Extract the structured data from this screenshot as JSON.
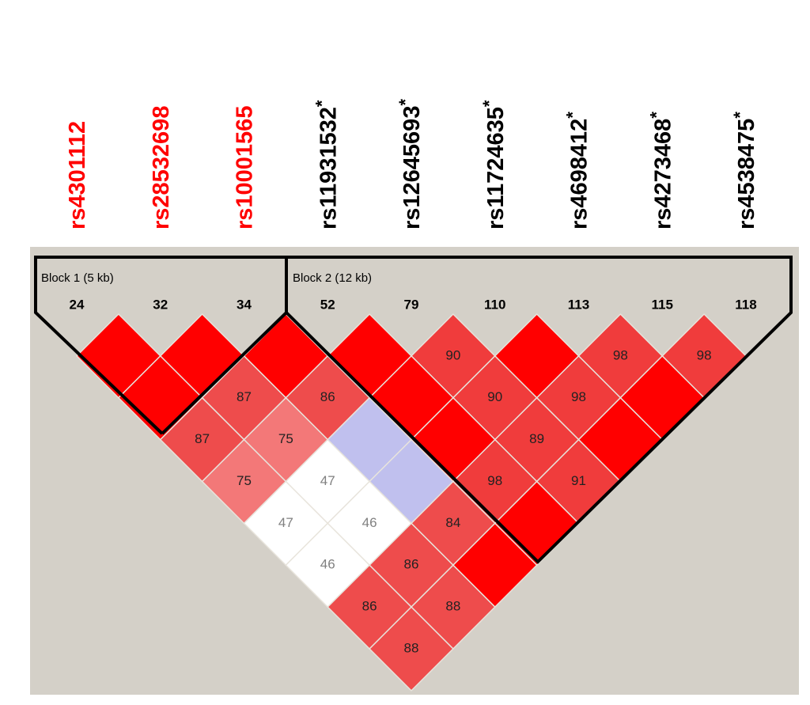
{
  "snps": [
    {
      "name": "rs4301112",
      "color": "#ff0000"
    },
    {
      "name": "rs28532698",
      "color": "#ff0000"
    },
    {
      "name": "rs10001565",
      "color": "#ff0000"
    },
    {
      "name": "rs11931532",
      "mark": "*",
      "color": "#000000"
    },
    {
      "name": "rs12645693",
      "mark": "*",
      "color": "#000000"
    },
    {
      "name": "rs11724635",
      "mark": "*",
      "color": "#000000"
    },
    {
      "name": "rs4698412",
      "mark": "*",
      "color": "#000000"
    },
    {
      "name": "rs4273468",
      "mark": "*",
      "color": "#000000"
    },
    {
      "name": "rs4538475",
      "mark": "*",
      "color": "#000000"
    }
  ],
  "positions": [
    24,
    32,
    34,
    52,
    79,
    110,
    113,
    115,
    118
  ],
  "blocks": [
    {
      "label": "Block 1 (5 kb)"
    },
    {
      "label": "Block 2 (12 kb)"
    }
  ],
  "ld_rows": [
    [
      {
        "value": null,
        "color": "#ff0000"
      },
      {
        "value": null,
        "color": "#ff0000"
      },
      {
        "value": null,
        "color": "#ff0000"
      },
      {
        "value": null,
        "color": "#ff0000"
      },
      {
        "value": 90,
        "color": "#f03c3c"
      },
      {
        "value": null,
        "color": "#ff0000"
      },
      {
        "value": 98,
        "color": "#f03c3c"
      },
      {
        "value": 98,
        "color": "#f03c3c"
      }
    ],
    [
      {
        "value": null,
        "color": "#ff0000"
      },
      {
        "value": 87,
        "color": "#ee4c4c"
      },
      {
        "value": 86,
        "color": "#ee4c4c"
      },
      {
        "value": null,
        "color": "#ff0000"
      },
      {
        "value": 90,
        "color": "#f03c3c"
      },
      {
        "value": 98,
        "color": "#f03c3c"
      },
      {
        "value": null,
        "color": "#ff0000"
      }
    ],
    [
      {
        "value": 87,
        "color": "#ee4c4c"
      },
      {
        "value": 75,
        "color": "#f37878"
      },
      {
        "value": null,
        "color": "#c0c0ee"
      },
      {
        "value": null,
        "color": "#ff0000"
      },
      {
        "value": 89,
        "color": "#f03c3c"
      },
      {
        "value": null,
        "color": "#ff0000"
      }
    ],
    [
      {
        "value": 75,
        "color": "#f37878"
      },
      {
        "value": 47,
        "color": "#ffffff"
      },
      {
        "value": null,
        "color": "#c0c0ee"
      },
      {
        "value": 98,
        "color": "#f03c3c"
      },
      {
        "value": 91,
        "color": "#f03c3c"
      }
    ],
    [
      {
        "value": 47,
        "color": "#ffffff"
      },
      {
        "value": 46,
        "color": "#ffffff"
      },
      {
        "value": 84,
        "color": "#ee4c4c"
      },
      {
        "value": null,
        "color": "#ff0000"
      }
    ],
    [
      {
        "value": 46,
        "color": "#ffffff"
      },
      {
        "value": 86,
        "color": "#ee4c4c"
      },
      {
        "value": null,
        "color": "#ff0000"
      }
    ],
    [
      {
        "value": 86,
        "color": "#ee4c4c"
      },
      {
        "value": 88,
        "color": "#ee4c4c"
      }
    ],
    [
      {
        "value": 88,
        "color": "#ee4c4c"
      }
    ]
  ]
}
